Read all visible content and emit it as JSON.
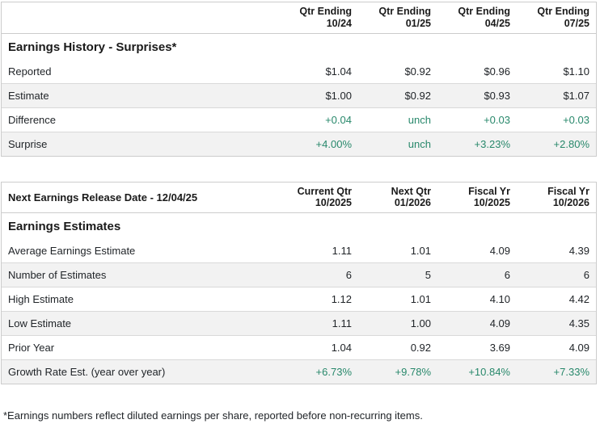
{
  "colors": {
    "positive_green": "#28886b",
    "border_gray": "#cccccc",
    "row_alt_gray": "#f2f2f2",
    "text_dark": "#212529"
  },
  "surprises_table": {
    "title": "Earnings History - Surprises*",
    "corner_label": "",
    "columns": [
      {
        "line1": "Qtr Ending",
        "line2": "10/24"
      },
      {
        "line1": "Qtr Ending",
        "line2": "01/25"
      },
      {
        "line1": "Qtr Ending",
        "line2": "04/25"
      },
      {
        "line1": "Qtr Ending",
        "line2": "07/25"
      }
    ],
    "rows": [
      {
        "label": "Reported",
        "values": [
          "$1.04",
          "$0.92",
          "$0.96",
          "$1.10"
        ],
        "positive": false
      },
      {
        "label": "Estimate",
        "values": [
          "$1.00",
          "$0.92",
          "$0.93",
          "$1.07"
        ],
        "positive": false
      },
      {
        "label": "Difference",
        "values": [
          "+0.04",
          "unch",
          "+0.03",
          "+0.03"
        ],
        "positive": true
      },
      {
        "label": "Surprise",
        "values": [
          "+4.00%",
          "unch",
          "+3.23%",
          "+2.80%"
        ],
        "positive": true
      }
    ]
  },
  "estimates_table": {
    "title": "Earnings Estimates",
    "corner_label": "Next Earnings Release Date - 12/04/25",
    "columns": [
      {
        "line1": "Current Qtr",
        "line2": "10/2025"
      },
      {
        "line1": "Next Qtr",
        "line2": "01/2026"
      },
      {
        "line1": "Fiscal Yr",
        "line2": "10/2025"
      },
      {
        "line1": "Fiscal Yr",
        "line2": "10/2026"
      }
    ],
    "rows": [
      {
        "label": "Average Earnings Estimate",
        "values": [
          "1.11",
          "1.01",
          "4.09",
          "4.39"
        ],
        "positive": false
      },
      {
        "label": "Number of Estimates",
        "values": [
          "6",
          "5",
          "6",
          "6"
        ],
        "positive": false
      },
      {
        "label": "High Estimate",
        "values": [
          "1.12",
          "1.01",
          "4.10",
          "4.42"
        ],
        "positive": false
      },
      {
        "label": "Low Estimate",
        "values": [
          "1.11",
          "1.00",
          "4.09",
          "4.35"
        ],
        "positive": false
      },
      {
        "label": "Prior Year",
        "values": [
          "1.04",
          "0.92",
          "3.69",
          "4.09"
        ],
        "positive": false
      },
      {
        "label": "Growth Rate Est. (year over year)",
        "values": [
          "+6.73%",
          "+9.78%",
          "+10.84%",
          "+7.33%"
        ],
        "positive": true
      }
    ]
  },
  "footnote": "*Earnings numbers reflect diluted earnings per share, reported before non-recurring items."
}
